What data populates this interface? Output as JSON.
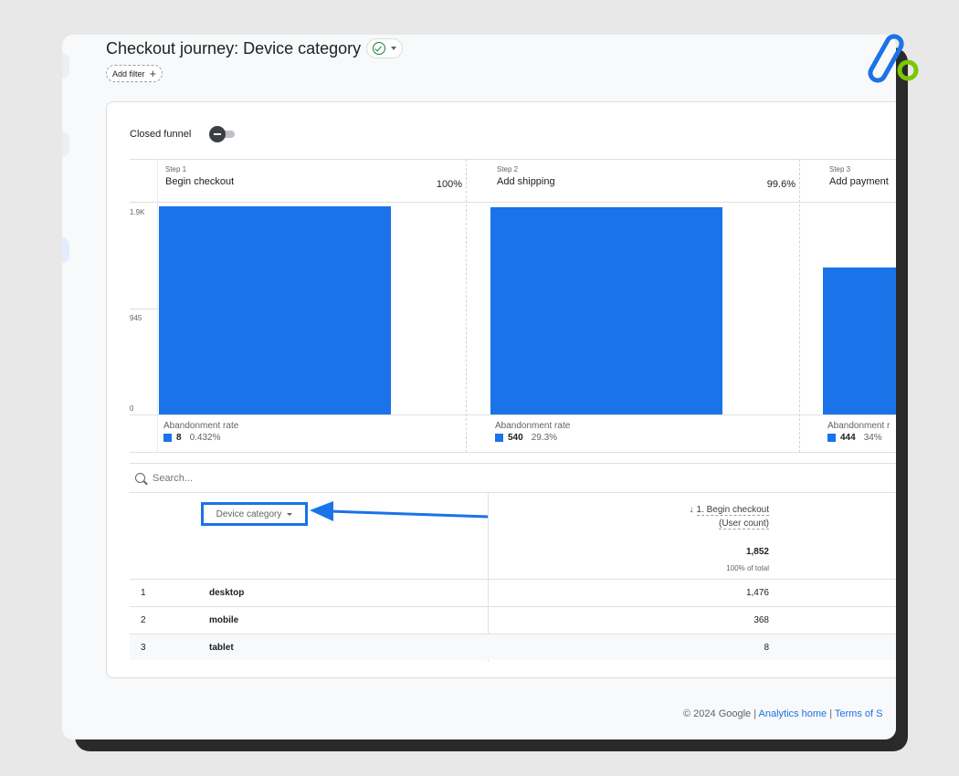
{
  "report": {
    "title": "Checkout journey: Device category",
    "add_filter_label": "Add filter"
  },
  "funnel": {
    "closed_funnel_label": "Closed funnel",
    "closed_funnel_on": false,
    "y_axis": [
      "1.9K",
      "945",
      "0"
    ],
    "steps": [
      {
        "num": "Step 1",
        "name": "Begin checkout",
        "pct": "100%",
        "bar_fraction": 1.0,
        "aband_label": "Abandonment rate",
        "aband_count": "8",
        "aband_rate": "0.432%"
      },
      {
        "num": "Step 2",
        "name": "Add shipping",
        "pct": "99.6%",
        "bar_fraction": 0.996,
        "aband_label": "Abandonment rate",
        "aband_count": "540",
        "aband_rate": "29.3%"
      },
      {
        "num": "Step 3",
        "name": "Add payment",
        "pct": "",
        "bar_fraction": 0.704,
        "aband_label": "Abandonment r",
        "aband_count": "444",
        "aband_rate": "34%"
      }
    ]
  },
  "table": {
    "search_placeholder": "Search...",
    "dimension_label": "Device category",
    "metric": {
      "title": "1. Begin checkout",
      "subtitle": "(User count)",
      "total": "1,852",
      "total_sub": "100% of total"
    },
    "rows": [
      {
        "idx": "1",
        "name": "desktop",
        "value": "1,476"
      },
      {
        "idx": "2",
        "name": "mobile",
        "value": "368"
      },
      {
        "idx": "3",
        "name": "tablet",
        "value": "8"
      }
    ]
  },
  "footer": {
    "copyright": "© 2024 Google |",
    "link1": "Analytics home",
    "sep": "|",
    "link2": "Terms of S"
  },
  "colors": {
    "accent": "#1a73e8",
    "logo_blue": "#1a73e8",
    "logo_green": "#7cc800"
  }
}
